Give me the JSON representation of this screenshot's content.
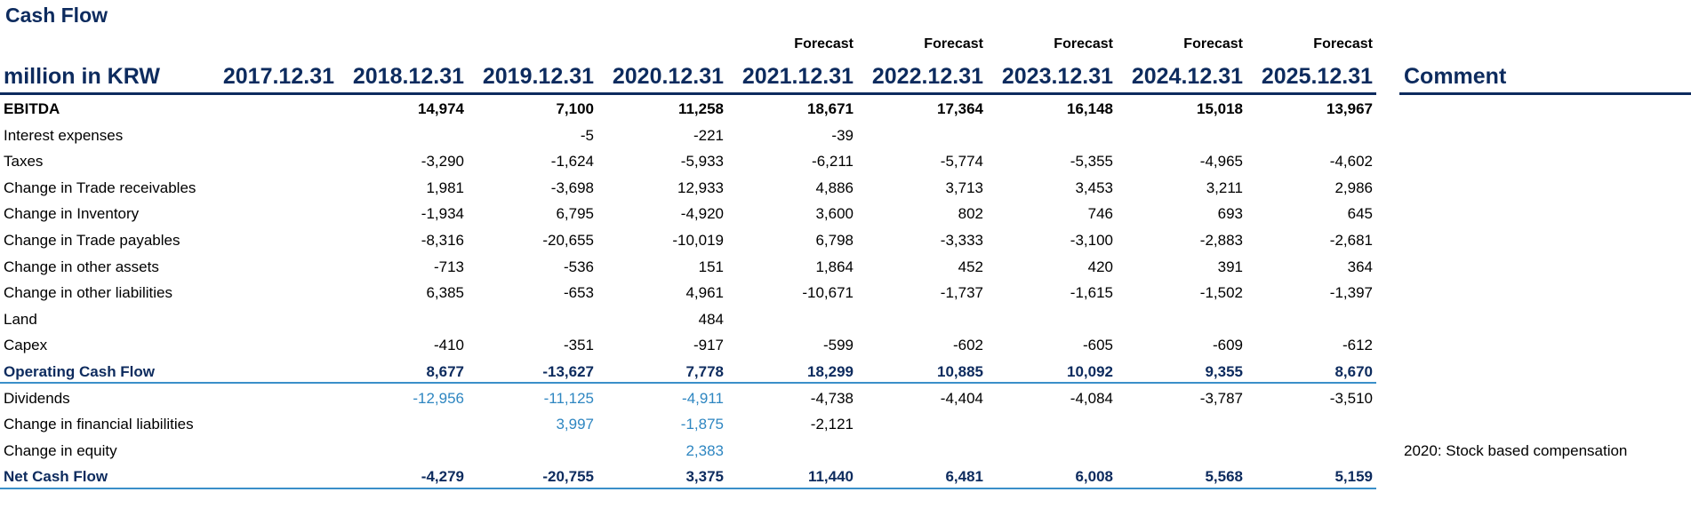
{
  "title": "Cash Flow",
  "header": {
    "unit_label": "million in KRW",
    "comment_label": "Comment",
    "forecast_label": "Forecast",
    "years": [
      "2017.12.31",
      "2018.12.31",
      "2019.12.31",
      "2020.12.31",
      "2021.12.31",
      "2022.12.31",
      "2023.12.31",
      "2024.12.31",
      "2025.12.31"
    ]
  },
  "rows": [
    {
      "label": "EBITDA",
      "values": [
        "",
        "14,974",
        "7,100",
        "11,258",
        "18,671",
        "17,364",
        "16,148",
        "15,018",
        "13,967"
      ],
      "comment": ""
    },
    {
      "label": "Interest expenses",
      "values": [
        "",
        "",
        "-5",
        "-221",
        "-39",
        "",
        "",
        "",
        ""
      ],
      "comment": ""
    },
    {
      "label": "Taxes",
      "values": [
        "",
        "-3,290",
        "-1,624",
        "-5,933",
        "-6,211",
        "-5,774",
        "-5,355",
        "-4,965",
        "-4,602"
      ],
      "comment": ""
    },
    {
      "label": "Change in Trade receivables",
      "values": [
        "",
        "1,981",
        "-3,698",
        "12,933",
        "4,886",
        "3,713",
        "3,453",
        "3,211",
        "2,986"
      ],
      "comment": ""
    },
    {
      "label": "Change in Inventory",
      "values": [
        "",
        "-1,934",
        "6,795",
        "-4,920",
        "3,600",
        "802",
        "746",
        "693",
        "645"
      ],
      "comment": ""
    },
    {
      "label": "Change in Trade payables",
      "values": [
        "",
        "-8,316",
        "-20,655",
        "-10,019",
        "6,798",
        "-3,333",
        "-3,100",
        "-2,883",
        "-2,681"
      ],
      "comment": ""
    },
    {
      "label": "Change in other assets",
      "values": [
        "",
        "-713",
        "-536",
        "151",
        "1,864",
        "452",
        "420",
        "391",
        "364"
      ],
      "comment": ""
    },
    {
      "label": "Change in other liabilities",
      "values": [
        "",
        "6,385",
        "-653",
        "4,961",
        "-10,671",
        "-1,737",
        "-1,615",
        "-1,502",
        "-1,397"
      ],
      "comment": ""
    },
    {
      "label": "Land",
      "values": [
        "",
        "",
        "",
        "484",
        "",
        "",
        "",
        "",
        ""
      ],
      "comment": ""
    },
    {
      "label": "Capex",
      "values": [
        "",
        "-410",
        "-351",
        "-917",
        "-599",
        "-602",
        "-605",
        "-609",
        "-612"
      ],
      "comment": ""
    },
    {
      "label": "Operating Cash Flow",
      "values": [
        "",
        "8,677",
        "-13,627",
        "7,778",
        "18,299",
        "10,885",
        "10,092",
        "9,355",
        "8,670"
      ],
      "comment": ""
    },
    {
      "label": "Dividends",
      "values": [
        "",
        "-12,956",
        "-11,125",
        "-4,911",
        "-4,738",
        "-4,404",
        "-4,084",
        "-3,787",
        "-3,510"
      ],
      "comment": ""
    },
    {
      "label": "Change in financial liabilities",
      "values": [
        "",
        "",
        "3,997",
        "-1,875",
        "-2,121",
        "",
        "",
        "",
        ""
      ],
      "comment": ""
    },
    {
      "label": "Change in equity",
      "values": [
        "",
        "",
        "",
        "2,383",
        "",
        "",
        "",
        "",
        ""
      ],
      "comment": "2020: Stock based compensation"
    },
    {
      "label": "Net Cash Flow",
      "values": [
        "",
        "-4,279",
        "-20,755",
        "3,375",
        "11,440",
        "6,481",
        "6,008",
        "5,568",
        "5,159"
      ],
      "comment": ""
    }
  ],
  "colors": {
    "dark_blue": "#0d2b5e",
    "accent_blue": "#2e86c1",
    "rule_blue": "#3a8fc9"
  }
}
